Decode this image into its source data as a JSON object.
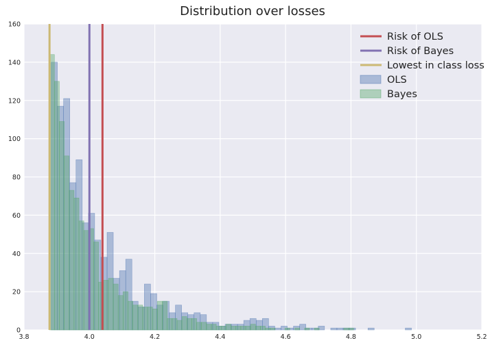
{
  "chart_data": {
    "type": "histogram",
    "title": "Distribution over losses",
    "xlabel": "",
    "ylabel": "",
    "xlim": [
      3.8,
      5.2
    ],
    "ylim": [
      0,
      160
    ],
    "xticks": [
      "3.8",
      "4.0",
      "4.2",
      "4.4",
      "4.6",
      "4.8",
      "5.0",
      "5.2"
    ],
    "yticks": [
      "0",
      "20",
      "40",
      "60",
      "80",
      "100",
      "120",
      "140",
      "160"
    ],
    "grid": true,
    "legend_position": "top-right",
    "vlines": [
      {
        "name": "Risk of OLS",
        "x": 4.04,
        "color": "#c44e52"
      },
      {
        "name": "Risk of Bayes",
        "x": 4.0,
        "color": "#8172b2"
      },
      {
        "name": "Lowest in class loss",
        "x": 3.878,
        "color": "#ccb974"
      }
    ],
    "series": [
      {
        "name": "OLS",
        "color": "#4c72b0",
        "bins": [
          [
            3.883,
            3.902,
            140
          ],
          [
            3.902,
            3.921,
            117
          ],
          [
            3.921,
            3.94,
            121
          ],
          [
            3.94,
            3.959,
            77
          ],
          [
            3.959,
            3.978,
            89
          ],
          [
            3.978,
            3.997,
            56
          ],
          [
            3.997,
            4.016,
            61
          ],
          [
            4.016,
            4.035,
            47
          ],
          [
            4.035,
            4.054,
            38
          ],
          [
            4.054,
            4.073,
            51
          ],
          [
            4.073,
            4.092,
            27
          ],
          [
            4.092,
            4.111,
            31
          ],
          [
            4.111,
            4.13,
            37
          ],
          [
            4.13,
            4.149,
            15
          ],
          [
            4.149,
            4.168,
            12
          ],
          [
            4.168,
            4.187,
            24
          ],
          [
            4.187,
            4.206,
            19
          ],
          [
            4.206,
            4.225,
            13
          ],
          [
            4.225,
            4.244,
            15
          ],
          [
            4.244,
            4.263,
            9
          ],
          [
            4.263,
            4.282,
            13
          ],
          [
            4.282,
            4.301,
            9
          ],
          [
            4.301,
            4.32,
            8
          ],
          [
            4.32,
            4.339,
            9
          ],
          [
            4.339,
            4.358,
            8
          ],
          [
            4.358,
            4.377,
            4
          ],
          [
            4.377,
            4.396,
            4
          ],
          [
            4.396,
            4.415,
            2
          ],
          [
            4.415,
            4.434,
            3
          ],
          [
            4.434,
            4.453,
            3
          ],
          [
            4.453,
            4.472,
            3
          ],
          [
            4.472,
            4.491,
            5
          ],
          [
            4.491,
            4.51,
            6
          ],
          [
            4.51,
            4.529,
            5
          ],
          [
            4.529,
            4.548,
            6
          ],
          [
            4.548,
            4.567,
            2
          ],
          [
            4.567,
            4.586,
            1
          ],
          [
            4.586,
            4.605,
            2
          ],
          [
            4.605,
            4.624,
            1
          ],
          [
            4.624,
            4.643,
            2
          ],
          [
            4.643,
            4.662,
            3
          ],
          [
            4.662,
            4.681,
            1
          ],
          [
            4.681,
            4.7,
            1
          ],
          [
            4.7,
            4.719,
            2
          ],
          [
            4.738,
            4.757,
            1
          ],
          [
            4.757,
            4.776,
            1
          ],
          [
            4.776,
            4.795,
            1
          ],
          [
            4.795,
            4.814,
            1
          ],
          [
            4.852,
            4.871,
            1
          ],
          [
            4.966,
            4.985,
            1
          ]
        ]
      },
      {
        "name": "Bayes",
        "color": "#55a868",
        "bins": [
          [
            3.878,
            3.893,
            144
          ],
          [
            3.893,
            3.908,
            130
          ],
          [
            3.908,
            3.923,
            109
          ],
          [
            3.923,
            3.938,
            91
          ],
          [
            3.938,
            3.953,
            73
          ],
          [
            3.953,
            3.968,
            69
          ],
          [
            3.968,
            3.983,
            57
          ],
          [
            3.983,
            3.998,
            52
          ],
          [
            3.998,
            4.013,
            53
          ],
          [
            4.013,
            4.028,
            46
          ],
          [
            4.028,
            4.043,
            25
          ],
          [
            4.043,
            4.058,
            26
          ],
          [
            4.058,
            4.073,
            27
          ],
          [
            4.073,
            4.088,
            24
          ],
          [
            4.088,
            4.103,
            18
          ],
          [
            4.103,
            4.118,
            20
          ],
          [
            4.118,
            4.133,
            15
          ],
          [
            4.133,
            4.148,
            13
          ],
          [
            4.148,
            4.163,
            13
          ],
          [
            4.163,
            4.178,
            12
          ],
          [
            4.178,
            4.193,
            12
          ],
          [
            4.193,
            4.208,
            11
          ],
          [
            4.208,
            4.223,
            15
          ],
          [
            4.223,
            4.238,
            15
          ],
          [
            4.238,
            4.253,
            6
          ],
          [
            4.253,
            4.268,
            6
          ],
          [
            4.268,
            4.283,
            5
          ],
          [
            4.283,
            4.298,
            7
          ],
          [
            4.298,
            4.313,
            6
          ],
          [
            4.313,
            4.328,
            6
          ],
          [
            4.328,
            4.343,
            4
          ],
          [
            4.343,
            4.358,
            4
          ],
          [
            4.358,
            4.373,
            3
          ],
          [
            4.373,
            4.388,
            3
          ],
          [
            4.388,
            4.403,
            2
          ],
          [
            4.403,
            4.418,
            2
          ],
          [
            4.418,
            4.433,
            3
          ],
          [
            4.433,
            4.448,
            2
          ],
          [
            4.448,
            4.463,
            2
          ],
          [
            4.463,
            4.478,
            2
          ],
          [
            4.478,
            4.493,
            2
          ],
          [
            4.493,
            4.508,
            3
          ],
          [
            4.508,
            4.523,
            2
          ],
          [
            4.523,
            4.538,
            2
          ],
          [
            4.538,
            4.553,
            1
          ],
          [
            4.553,
            4.568,
            1
          ],
          [
            4.598,
            4.613,
            1
          ],
          [
            4.628,
            4.643,
            1
          ],
          [
            4.658,
            4.673,
            1
          ],
          [
            4.688,
            4.703,
            1
          ],
          [
            4.778,
            4.793,
            1
          ],
          [
            4.793,
            4.808,
            1
          ]
        ]
      }
    ]
  }
}
